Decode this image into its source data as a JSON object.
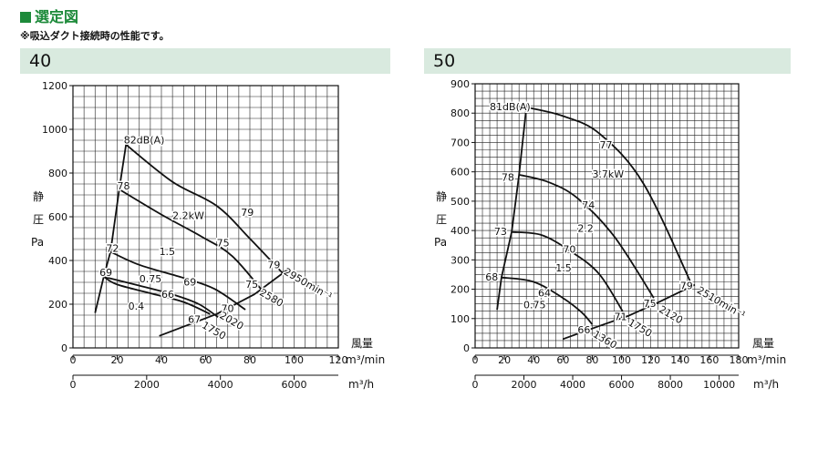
{
  "header": {
    "title": "選定図",
    "note": "※吸込ダクト接続時の性能です。"
  },
  "chart_data": [
    {
      "type": "line",
      "title": "40",
      "ylabel": [
        "静",
        "圧",
        "Pa"
      ],
      "xlabel": [
        "風量",
        "m³/min"
      ],
      "x2label": "m³/h",
      "xlim": [
        0,
        120
      ],
      "ylim": [
        0,
        1200
      ],
      "xticks": [
        0,
        20,
        40,
        60,
        80,
        100,
        120
      ],
      "xtick_labels": [
        "0",
        "20",
        "40",
        "60",
        "80",
        "100",
        "120"
      ],
      "yticks": [
        0,
        200,
        400,
        600,
        800,
        1000,
        1200
      ],
      "ytick_labels": [
        "0",
        "200",
        "400",
        "600",
        "800",
        "1000",
        "1200"
      ],
      "x2ticks": [
        0,
        2000,
        4000,
        6000
      ],
      "x2tick_labels": [
        "0",
        "2000",
        "4000",
        "6000"
      ],
      "x2_per_x": 60,
      "grid_minor": [
        5,
        50
      ],
      "grid": true,
      "series": [
        {
          "name": "0.4",
          "values": [
            [
              14,
              325
            ],
            [
              20,
              290
            ],
            [
              35,
              250
            ],
            [
              50,
              210
            ],
            [
              62,
              155
            ]
          ]
        },
        {
          "name": "0.75",
          "values": [
            [
              14,
              325
            ],
            [
              30,
              285
            ],
            [
              45,
              245
            ],
            [
              57,
              200
            ],
            [
              67,
              130
            ]
          ]
        },
        {
          "name": "1.5",
          "values": [
            [
              17,
              440
            ],
            [
              30,
              380
            ],
            [
              50,
              320
            ],
            [
              64,
              270
            ],
            [
              78,
              175
            ]
          ]
        },
        {
          "name": "2.2kW",
          "values": [
            [
              21,
              725
            ],
            [
              40,
              610
            ],
            [
              58,
              510
            ],
            [
              72,
              420
            ],
            [
              87,
              245
            ]
          ]
        },
        {
          "name": "",
          "values": [
            [
              24,
              930
            ],
            [
              45,
              760
            ],
            [
              65,
              650
            ],
            [
              80,
              500
            ],
            [
              95,
              340
            ]
          ]
        }
      ],
      "fan_curves": [
        {
          "values": [
            [
              10,
              160
            ],
            [
              14,
              330
            ],
            [
              17,
              440
            ],
            [
              21,
              730
            ],
            [
              24,
              930
            ]
          ]
        },
        {
          "values": [
            [
              39,
              55
            ],
            [
              65,
              155
            ],
            [
              82,
              245
            ],
            [
              98,
              365
            ]
          ]
        }
      ],
      "annotations": [
        {
          "text": "82dB(A)",
          "x": 23,
          "y": 935
        },
        {
          "text": "78",
          "x": 20,
          "y": 725
        },
        {
          "text": "79",
          "x": 76,
          "y": 605
        },
        {
          "text": "75",
          "x": 65,
          "y": 465
        },
        {
          "text": "72",
          "x": 15,
          "y": 440
        },
        {
          "text": "69",
          "x": 12,
          "y": 330
        },
        {
          "text": "69",
          "x": 50,
          "y": 285
        },
        {
          "text": "66",
          "x": 40,
          "y": 230
        },
        {
          "text": "70",
          "x": 67,
          "y": 165
        },
        {
          "text": "67",
          "x": 52,
          "y": 115
        },
        {
          "text": "79",
          "x": 88,
          "y": 365
        },
        {
          "text": "75",
          "x": 78,
          "y": 275
        },
        {
          "text": "2.2kW",
          "x": 45,
          "y": 590
        },
        {
          "text": "1.5",
          "x": 39,
          "y": 425
        },
        {
          "text": "0.75",
          "x": 30,
          "y": 300
        },
        {
          "text": "0.4",
          "x": 25,
          "y": 175
        },
        {
          "text": "2950min⁻¹",
          "x": 95,
          "y": 340,
          "rotate": 30
        },
        {
          "text": "2580",
          "x": 84,
          "y": 245,
          "rotate": 30
        },
        {
          "text": "2020",
          "x": 66,
          "y": 140,
          "rotate": 30
        },
        {
          "text": "1750",
          "x": 58,
          "y": 95,
          "rotate": 30
        }
      ]
    },
    {
      "type": "line",
      "title": "50",
      "ylabel": [
        "静",
        "圧",
        "Pa"
      ],
      "xlabel": [
        "風量",
        "m³/min"
      ],
      "x2label": "m³/h",
      "xlim": [
        0,
        180
      ],
      "ylim": [
        0,
        900
      ],
      "xticks": [
        0,
        20,
        40,
        60,
        80,
        100,
        120,
        140,
        160,
        180
      ],
      "xtick_labels": [
        "0",
        "20",
        "40",
        "60",
        "80",
        "100",
        "120",
        "140",
        "160",
        "180"
      ],
      "yticks": [
        0,
        100,
        200,
        300,
        400,
        500,
        600,
        700,
        800,
        900
      ],
      "ytick_labels": [
        "0",
        "100",
        "200",
        "300",
        "400",
        "500",
        "600",
        "700",
        "800",
        "900"
      ],
      "x2ticks": [
        0,
        2000,
        4000,
        6000,
        8000,
        10000
      ],
      "x2tick_labels": [
        "0",
        "2000",
        "4000",
        "6000",
        "8000",
        "10000"
      ],
      "x2_per_x": 60,
      "grid_minor": [
        5,
        25
      ],
      "grid": true,
      "series": [
        {
          "name": "0.75",
          "values": [
            [
              18,
              240
            ],
            [
              40,
              225
            ],
            [
              60,
              170
            ],
            [
              73,
              120
            ],
            [
              80,
              80
            ]
          ]
        },
        {
          "name": "1.5",
          "values": [
            [
              25,
              395
            ],
            [
              45,
              385
            ],
            [
              65,
              330
            ],
            [
              85,
              250
            ],
            [
              103,
              105
            ]
          ]
        },
        {
          "name": "2.2",
          "values": [
            [
              30,
              590
            ],
            [
              50,
              565
            ],
            [
              70,
              510
            ],
            [
              95,
              380
            ],
            [
              122,
              170
            ]
          ]
        },
        {
          "name": "3.7kW",
          "values": [
            [
              35,
              820
            ],
            [
              60,
              790
            ],
            [
              85,
              730
            ],
            [
              115,
              560
            ],
            [
              148,
              215
            ]
          ]
        }
      ],
      "fan_curves": [
        {
          "values": [
            [
              15,
              130
            ],
            [
              18,
              240
            ],
            [
              25,
              395
            ],
            [
              30,
              590
            ],
            [
              35,
              820
            ]
          ]
        },
        {
          "values": [
            [
              60,
              30
            ],
            [
              85,
              75
            ],
            [
              105,
              110
            ],
            [
              125,
              155
            ],
            [
              150,
              215
            ]
          ]
        }
      ],
      "annotations": [
        {
          "text": "81dB(A)",
          "x": 10,
          "y": 810
        },
        {
          "text": "77",
          "x": 85,
          "y": 680
        },
        {
          "text": "3.7kW",
          "x": 80,
          "y": 580
        },
        {
          "text": "78",
          "x": 18,
          "y": 570
        },
        {
          "text": "74",
          "x": 73,
          "y": 475
        },
        {
          "text": "2.2",
          "x": 70,
          "y": 395
        },
        {
          "text": "73",
          "x": 13,
          "y": 385
        },
        {
          "text": "70",
          "x": 60,
          "y": 325
        },
        {
          "text": "1.5",
          "x": 55,
          "y": 260
        },
        {
          "text": "68",
          "x": 7,
          "y": 230
        },
        {
          "text": "64",
          "x": 43,
          "y": 175
        },
        {
          "text": "0.75",
          "x": 33,
          "y": 135
        },
        {
          "text": "79",
          "x": 140,
          "y": 200
        },
        {
          "text": "75",
          "x": 115,
          "y": 140
        },
        {
          "text": "71",
          "x": 95,
          "y": 95
        },
        {
          "text": "66",
          "x": 70,
          "y": 50
        },
        {
          "text": "2510min⁻¹",
          "x": 151,
          "y": 190,
          "rotate": 30
        },
        {
          "text": "2120",
          "x": 125,
          "y": 125,
          "rotate": 30
        },
        {
          "text": "1750",
          "x": 104,
          "y": 80,
          "rotate": 30
        },
        {
          "text": "1360",
          "x": 80,
          "y": 40,
          "rotate": 30
        }
      ]
    }
  ]
}
